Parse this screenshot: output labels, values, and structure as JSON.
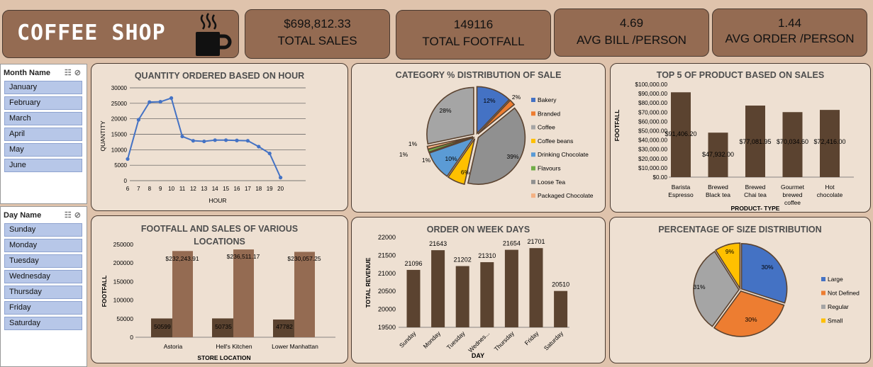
{
  "header": {
    "title": "COFFEE SHOP",
    "icon": "coffee-cup-icon"
  },
  "kpis": [
    {
      "value": "$698,812.33",
      "label": "TOTAL SALES"
    },
    {
      "value": "149116",
      "label": "TOTAL FOOTFALL"
    },
    {
      "value": "4.69",
      "label": "AVG BILL /PERSON"
    },
    {
      "value": "1.44",
      "label": "AVG ORDER /PERSON"
    }
  ],
  "month_slicer": {
    "title": "Month Name",
    "items": [
      "January",
      "February",
      "March",
      "April",
      "May",
      "June"
    ]
  },
  "day_slicer": {
    "title": "Day Name",
    "items": [
      "Sunday",
      "Monday",
      "Tuesday",
      "Wednesday",
      "Thursday",
      "Friday",
      "Saturday"
    ]
  },
  "colors": {
    "bar": "#5b4330",
    "bar_light": "#946b52",
    "line": "#4472c4",
    "panel": "#eee0d2",
    "kpi": "#946b52"
  },
  "chart_data": [
    {
      "type": "line",
      "title": "QUANTITY ORDERED BASED ON HOUR",
      "xlabel": "HOUR",
      "ylabel": "QUANTITY",
      "x": [
        6,
        7,
        8,
        9,
        10,
        11,
        12,
        13,
        14,
        15,
        16,
        17,
        18,
        19,
        20
      ],
      "values": [
        7000,
        19700,
        25400,
        25500,
        26700,
        14300,
        12900,
        12700,
        13100,
        13100,
        13000,
        12900,
        11000,
        8800,
        1000
      ],
      "ylim": [
        0,
        30000
      ],
      "yticks": [
        0,
        5000,
        10000,
        15000,
        20000,
        25000,
        30000
      ],
      "grid": true
    },
    {
      "type": "pie",
      "title": "CATEGORY % DISTRIBUTION OF SALE",
      "categories": [
        "Bakery",
        "Branded",
        "Coffee",
        "Coffee beans",
        "Drinking Chocolate",
        "Flavours",
        "Loose Tea",
        "Packaged Chocolate"
      ],
      "pie_order": [
        "Bakery",
        "Branded",
        "Loose Tea",
        "Coffee beans",
        "Drinking Chocolate",
        "Flavours",
        "Packaged Chocolate",
        "Coffee"
      ],
      "values": [
        12,
        2,
        28,
        6,
        10,
        1,
        39,
        1
      ],
      "value_labels": [
        "12%",
        "2%",
        "28%",
        "6%",
        "10%",
        "1%",
        "39%",
        "1%"
      ],
      "colors": [
        "#4472c4",
        "#ed7d31",
        "#a5a5a5",
        "#ffc000",
        "#5b9bd5",
        "#70ad47",
        "#909090",
        "#f4b183"
      ],
      "legend": "right"
    },
    {
      "type": "bar",
      "title": "TOP 5 OF PRODUCT BASED ON SALES",
      "xlabel": "PRODUCT- TYPE",
      "ylabel": "FOOTFALL",
      "categories": [
        [
          "Barista",
          "Espresso"
        ],
        [
          "Brewed",
          "Black tea"
        ],
        [
          "Brewed",
          "Chai tea"
        ],
        [
          "Gourmet",
          "brewed",
          "coffee"
        ],
        [
          "Hot",
          "chocolate"
        ]
      ],
      "values": [
        91406.2,
        47932,
        77081.95,
        70034.6,
        72416
      ],
      "value_labels": [
        "$91,406.20",
        "$47,932.00",
        "$77,081.95",
        "$70,034.60",
        "$72,416.00"
      ],
      "ylim": [
        0,
        100000
      ],
      "yticks": [
        "$0.00",
        "$10,000.00",
        "$20,000.00",
        "$30,000.00",
        "$40,000.00",
        "$50,000.00",
        "$60,000.00",
        "$70,000.00",
        "$80,000.00",
        "$90,000.00",
        "$100,000.00"
      ]
    },
    {
      "type": "bar",
      "title": "FOOTFALL AND SALES OF VARIOUS LOCATIONS",
      "xlabel": "STORE LOCATION",
      "ylabel": "FOOTFALL",
      "categories": [
        "Astoria",
        "Hell's Kitchen",
        "Lower Manhattan"
      ],
      "series": [
        {
          "values": [
            50599,
            50735,
            47782
          ],
          "value_labels": [
            "50599",
            "50735",
            "47782"
          ]
        },
        {
          "values": [
            232243.91,
            236511.17,
            230057.25
          ],
          "value_labels": [
            "$232,243.91",
            "$236,511.17",
            "$230,057.25"
          ]
        }
      ],
      "ylim": [
        0,
        250000
      ],
      "yticks": [
        "0",
        "50000",
        "100000",
        "150000",
        "200000",
        "250000"
      ]
    },
    {
      "type": "bar",
      "title": "ORDER ON WEEK DAYS",
      "xlabel": "DAY",
      "ylabel": "TOTAL REVENUE",
      "categories": [
        "Sunday",
        "Monday",
        "Tuesday",
        "Wednes...",
        "Thursday",
        "Friday",
        "Saturday"
      ],
      "values": [
        21096,
        21643,
        21202,
        21310,
        21654,
        21701,
        20510
      ],
      "value_labels": [
        "21096",
        "21643",
        "21202",
        "21310",
        "21654",
        "21701",
        "20510"
      ],
      "ylim": [
        19500,
        22000
      ],
      "yticks": [
        "19500",
        "20000",
        "20500",
        "21000",
        "21500",
        "22000"
      ]
    },
    {
      "type": "pie",
      "title": "PERCENTAGE OF SIZE DISTRIBUTION",
      "categories": [
        "Large",
        "Not Defined",
        "Regular",
        "Small"
      ],
      "values": [
        30,
        30,
        31,
        9
      ],
      "value_labels": [
        "30%",
        "30%",
        "31%",
        "9%"
      ],
      "colors": [
        "#4472c4",
        "#ed7d31",
        "#a5a5a5",
        "#ffc000"
      ],
      "legend": "right"
    }
  ]
}
